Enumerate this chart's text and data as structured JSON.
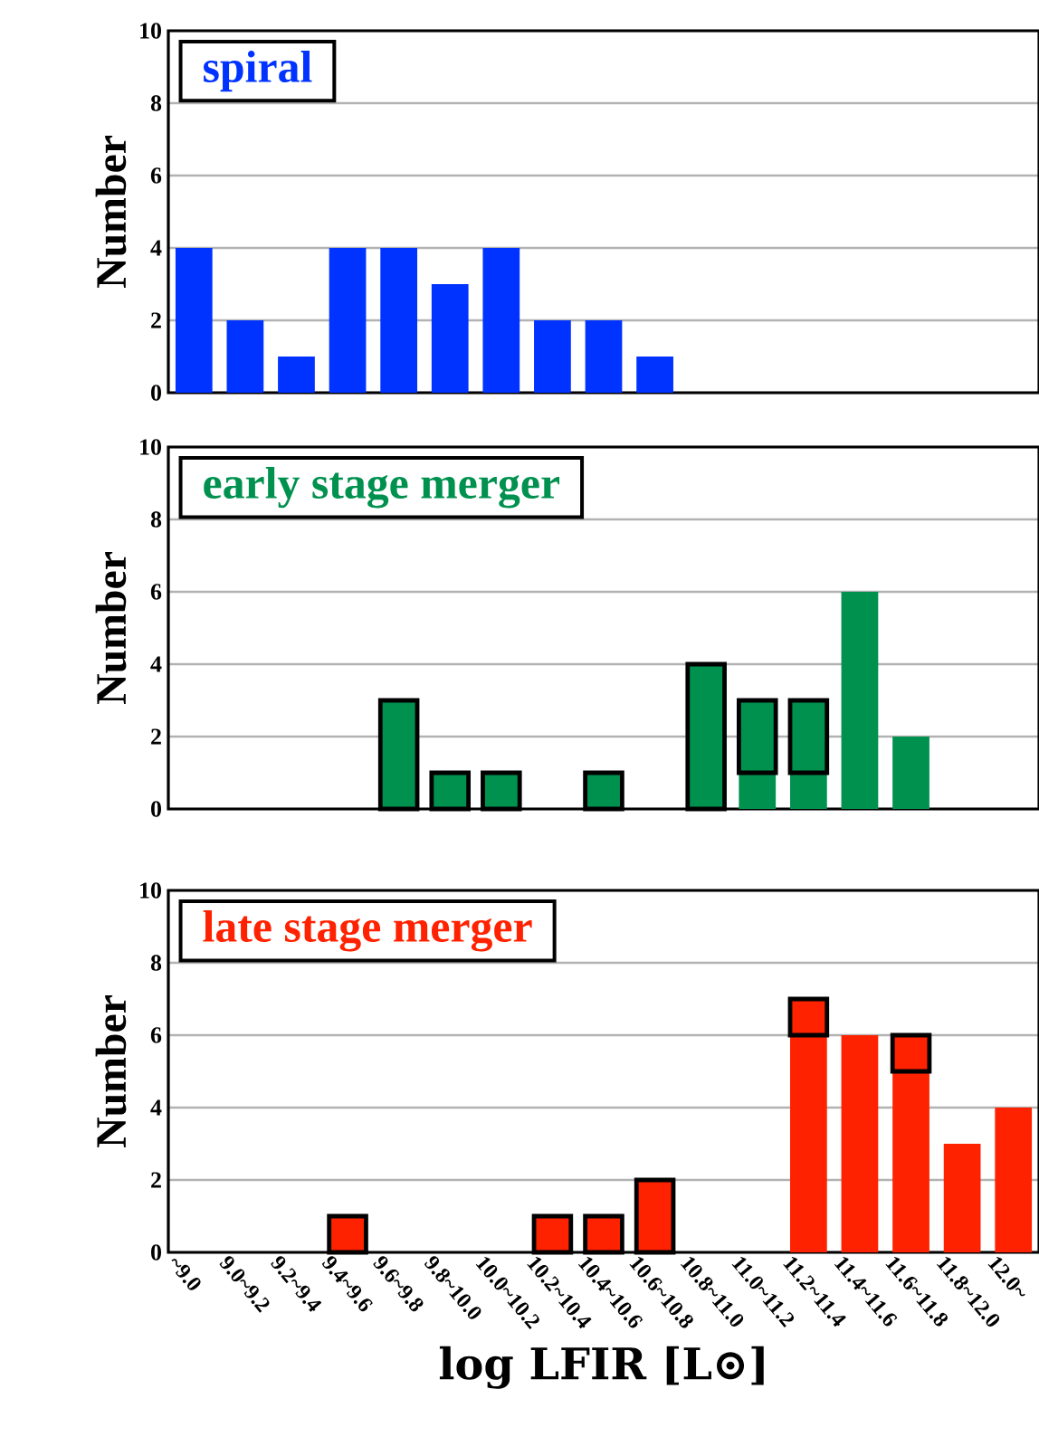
{
  "chart_data": [
    {
      "type": "bar",
      "title": "spiral",
      "ylabel": "Number",
      "categories": [
        null,
        null,
        null,
        null,
        null,
        null,
        null,
        null,
        null,
        null,
        null,
        null,
        null,
        null,
        null,
        null,
        null
      ],
      "series": [
        {
          "color": "#0033ff",
          "values": [
            4,
            2,
            1,
            4,
            4,
            3,
            4,
            2,
            2,
            1,
            0,
            0,
            0,
            0,
            0,
            0,
            0
          ]
        }
      ],
      "ylim": [
        0,
        10
      ],
      "yticks": [
        0,
        2,
        4,
        6,
        8,
        10
      ],
      "grid": "y",
      "tick_labels": "y"
    },
    {
      "type": "bar",
      "title": "early stage merger",
      "ylabel": "Number",
      "categories": [
        null,
        null,
        null,
        null,
        null,
        null,
        null,
        null,
        null,
        null,
        null,
        null,
        null,
        null,
        null,
        null,
        null
      ],
      "series": [
        {
          "color": "#00914f",
          "values": [
            0,
            0,
            0,
            0,
            0,
            0,
            0,
            0,
            0,
            0,
            0,
            1,
            1,
            6,
            2,
            0,
            0
          ]
        },
        {
          "color": "#00914f",
          "values": [
            0,
            0,
            0,
            0,
            3,
            1,
            1,
            0,
            1,
            0,
            4,
            2,
            2,
            0,
            0,
            0,
            0
          ]
        }
      ],
      "stacked": true,
      "ylim": [
        0,
        10
      ],
      "yticks": [
        0,
        2,
        4,
        6,
        8,
        10
      ],
      "grid": "y",
      "tick_labels": "y"
    },
    {
      "type": "bar",
      "title": "late stage merger",
      "ylabel": "Number",
      "xlabel": "log LFIR [L⊙]",
      "categories": [
        "~9.0",
        "9.0~9.2",
        "9.2~9.4",
        "9.4~9.6",
        "9.6~9.8",
        "9.8~10.0",
        "10.0~10.2",
        "10.2~10.4",
        "10.4~10.6",
        "10.6~10.8",
        "10.8~11.0",
        "11.0~11.2",
        "11.2~11.4",
        "11.4~11.6",
        "11.6~11.8",
        "11.8~12.0",
        "12.0~"
      ],
      "series": [
        {
          "color": "#ff2200",
          "values": [
            0,
            0,
            0,
            0,
            0,
            0,
            0,
            0,
            0,
            0,
            0,
            0,
            6,
            6,
            5,
            3,
            4
          ]
        },
        {
          "color": "#ff2200",
          "values": [
            0,
            0,
            0,
            1,
            0,
            0,
            0,
            1,
            1,
            2,
            0,
            0,
            1,
            0,
            1,
            0,
            0
          ]
        }
      ],
      "stacked": true,
      "ylim": [
        0,
        10
      ],
      "yticks": [
        0,
        2,
        4,
        6,
        8,
        10
      ],
      "grid": "y"
    }
  ]
}
